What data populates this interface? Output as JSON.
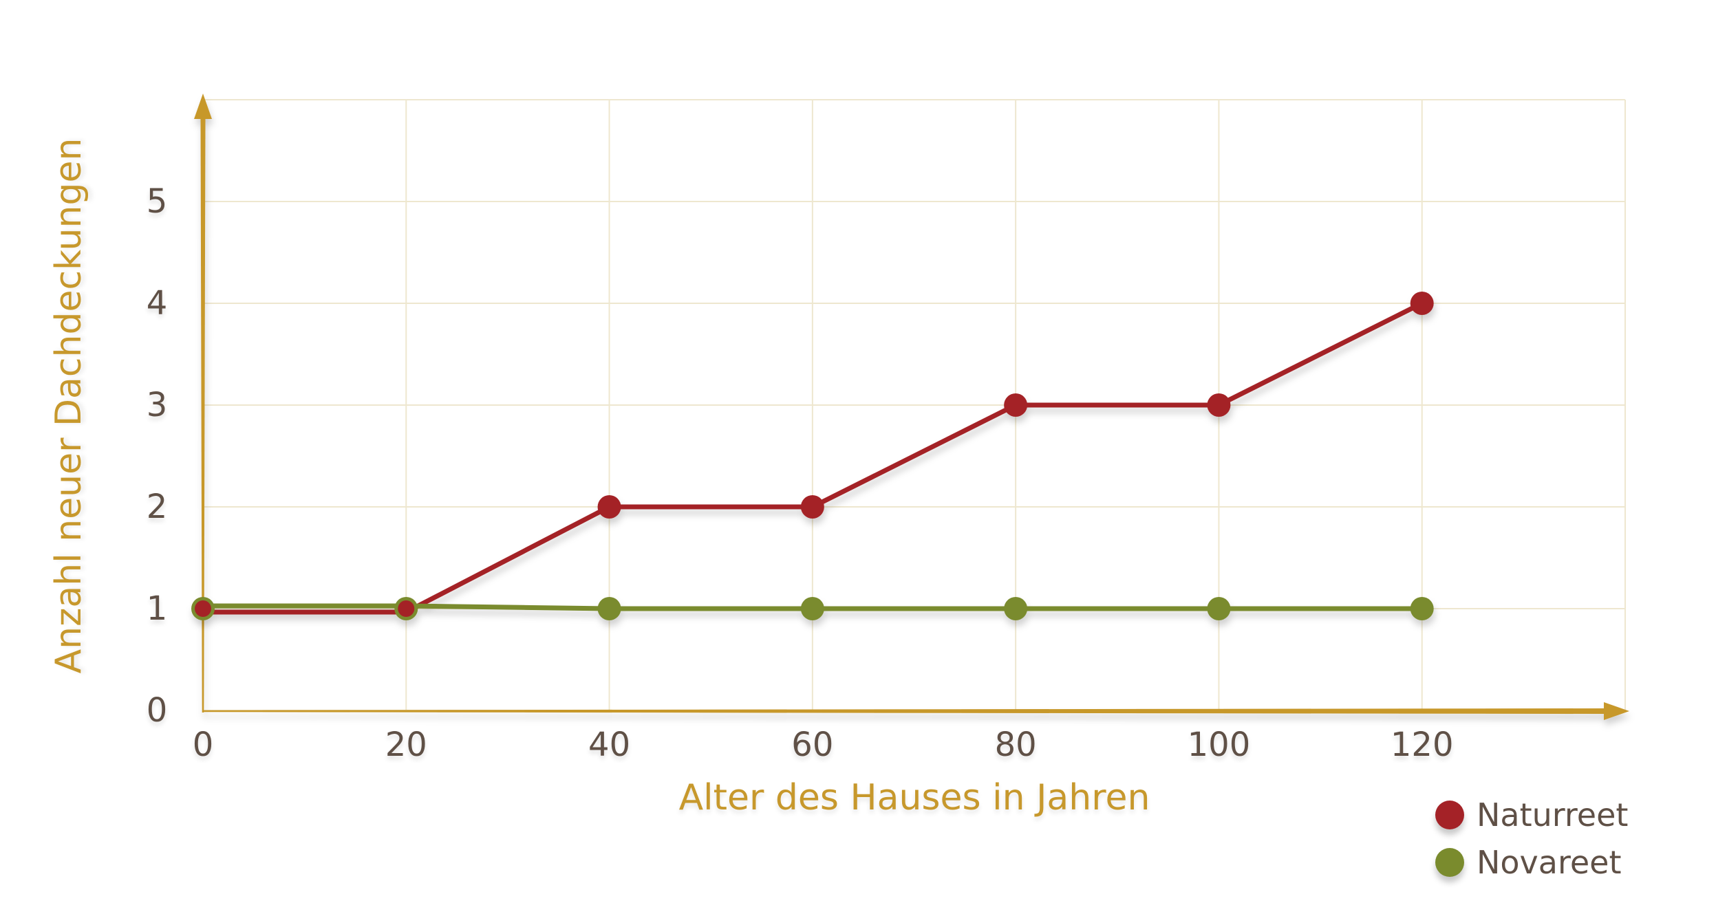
{
  "chart_data": {
    "type": "line",
    "title": "",
    "xlabel": "Alter des Hauses in Jahren",
    "ylabel": "Anzahl neuer Dachdeckungen",
    "x": [
      0,
      20,
      40,
      60,
      80,
      100,
      120
    ],
    "x_ticks": [
      0,
      20,
      40,
      60,
      80,
      100,
      120
    ],
    "y_ticks": [
      0,
      1,
      2,
      3,
      4,
      5
    ],
    "xlim": [
      0,
      140
    ],
    "ylim": [
      0,
      6
    ],
    "grid": true,
    "legend_position": "bottom-right",
    "series": [
      {
        "name": "Naturreet",
        "color": "#A42227",
        "values": [
          1,
          1,
          2,
          2,
          3,
          3,
          4
        ]
      },
      {
        "name": "Novareet",
        "color": "#7A8B2D",
        "values": [
          1,
          1,
          1,
          1,
          1,
          1,
          1
        ]
      }
    ]
  },
  "colors": {
    "axis": "#C7982C",
    "tick_text": "#5F5046",
    "grid": "#EEE7CF",
    "background": "#FFFFFF"
  }
}
